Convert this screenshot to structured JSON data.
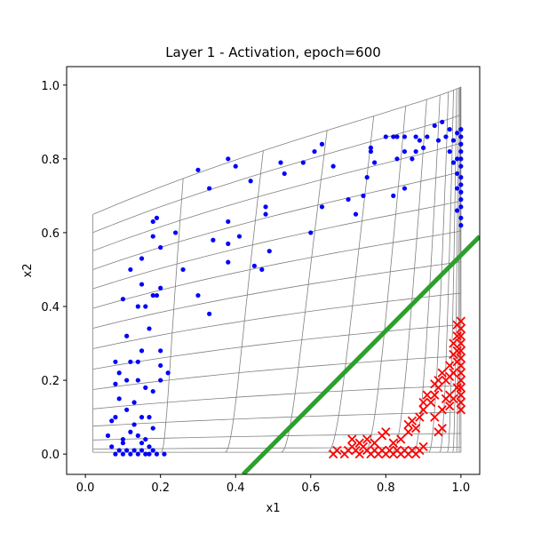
{
  "chart_data": {
    "type": "scatter",
    "title": "Layer 1 - Activation, epoch=600",
    "xlabel": "x1",
    "ylabel": "x2",
    "xlim": [
      -0.05,
      1.05
    ],
    "ylim": [
      -0.055,
      1.05
    ],
    "xticks": [
      0.0,
      0.2,
      0.4,
      0.6,
      0.8,
      1.0
    ],
    "yticks": [
      0.0,
      0.2,
      0.4,
      0.6,
      0.8,
      1.0
    ],
    "xtick_labels": [
      "0.0",
      "0.2",
      "0.4",
      "0.6",
      "0.8",
      "1.0"
    ],
    "ytick_labels": [
      "0.0",
      "0.2",
      "0.4",
      "0.6",
      "0.8",
      "1.0"
    ],
    "grid": false,
    "colors": {
      "class0": "#0000ff",
      "class1": "#ff0000",
      "boundary": "#2ca02c",
      "mesh": "#808080"
    },
    "decision_boundary": {
      "x": [
        0.42,
        1.05
      ],
      "y": [
        -0.055,
        0.59
      ]
    },
    "series": [
      {
        "marker": "dot",
        "points": [
          [
            0.06,
            0.05
          ],
          [
            0.07,
            0.09
          ],
          [
            0.08,
            0.1
          ],
          [
            0.07,
            0.02
          ],
          [
            0.08,
            0.0
          ],
          [
            0.09,
            0.01
          ],
          [
            0.1,
            0.0
          ],
          [
            0.1,
            0.03
          ],
          [
            0.11,
            0.01
          ],
          [
            0.12,
            0.0
          ],
          [
            0.13,
            0.01
          ],
          [
            0.14,
            0.0
          ],
          [
            0.15,
            0.01
          ],
          [
            0.16,
            0.0
          ],
          [
            0.17,
            0.0
          ],
          [
            0.18,
            0.01
          ],
          [
            0.19,
            0.0
          ],
          [
            0.21,
            0.0
          ],
          [
            0.1,
            0.04
          ],
          [
            0.12,
            0.06
          ],
          [
            0.14,
            0.05
          ],
          [
            0.15,
            0.03
          ],
          [
            0.16,
            0.04
          ],
          [
            0.17,
            0.02
          ],
          [
            0.13,
            0.08
          ],
          [
            0.15,
            0.1
          ],
          [
            0.17,
            0.1
          ],
          [
            0.18,
            0.07
          ],
          [
            0.11,
            0.12
          ],
          [
            0.09,
            0.15
          ],
          [
            0.13,
            0.14
          ],
          [
            0.08,
            0.19
          ],
          [
            0.09,
            0.22
          ],
          [
            0.08,
            0.25
          ],
          [
            0.12,
            0.25
          ],
          [
            0.11,
            0.2
          ],
          [
            0.14,
            0.2
          ],
          [
            0.16,
            0.18
          ],
          [
            0.18,
            0.17
          ],
          [
            0.2,
            0.2
          ],
          [
            0.2,
            0.24
          ],
          [
            0.22,
            0.22
          ],
          [
            0.15,
            0.28
          ],
          [
            0.14,
            0.25
          ],
          [
            0.11,
            0.32
          ],
          [
            0.17,
            0.34
          ],
          [
            0.2,
            0.28
          ],
          [
            0.14,
            0.4
          ],
          [
            0.16,
            0.4
          ],
          [
            0.15,
            0.46
          ],
          [
            0.18,
            0.43
          ],
          [
            0.19,
            0.43
          ],
          [
            0.2,
            0.45
          ],
          [
            0.1,
            0.42
          ],
          [
            0.12,
            0.5
          ],
          [
            0.15,
            0.53
          ],
          [
            0.18,
            0.59
          ],
          [
            0.18,
            0.63
          ],
          [
            0.19,
            0.64
          ],
          [
            0.2,
            0.56
          ],
          [
            0.24,
            0.6
          ],
          [
            0.26,
            0.5
          ],
          [
            0.3,
            0.43
          ],
          [
            0.33,
            0.38
          ],
          [
            0.3,
            0.77
          ],
          [
            0.33,
            0.72
          ],
          [
            0.34,
            0.58
          ],
          [
            0.38,
            0.57
          ],
          [
            0.38,
            0.63
          ],
          [
            0.38,
            0.52
          ],
          [
            0.38,
            0.8
          ],
          [
            0.4,
            0.78
          ],
          [
            0.41,
            0.59
          ],
          [
            0.44,
            0.74
          ],
          [
            0.45,
            0.51
          ],
          [
            0.47,
            0.5
          ],
          [
            0.48,
            0.67
          ],
          [
            0.48,
            0.65
          ],
          [
            0.49,
            0.55
          ],
          [
            0.52,
            0.79
          ],
          [
            0.53,
            0.76
          ],
          [
            0.58,
            0.79
          ],
          [
            0.6,
            0.6
          ],
          [
            0.61,
            0.82
          ],
          [
            0.63,
            0.84
          ],
          [
            0.63,
            0.67
          ],
          [
            0.66,
            0.78
          ],
          [
            0.7,
            0.69
          ],
          [
            0.72,
            0.65
          ],
          [
            0.74,
            0.7
          ],
          [
            0.75,
            0.75
          ],
          [
            0.76,
            0.83
          ],
          [
            0.76,
            0.82
          ],
          [
            0.77,
            0.79
          ],
          [
            0.8,
            0.86
          ],
          [
            0.82,
            0.86
          ],
          [
            0.82,
            0.7
          ],
          [
            0.83,
            0.8
          ],
          [
            0.83,
            0.86
          ],
          [
            0.85,
            0.86
          ],
          [
            0.85,
            0.82
          ],
          [
            0.85,
            0.72
          ],
          [
            0.87,
            0.8
          ],
          [
            0.88,
            0.82
          ],
          [
            0.88,
            0.86
          ],
          [
            0.89,
            0.85
          ],
          [
            0.9,
            0.83
          ],
          [
            0.91,
            0.86
          ],
          [
            0.93,
            0.89
          ],
          [
            0.94,
            0.85
          ],
          [
            0.95,
            0.9
          ],
          [
            0.96,
            0.86
          ],
          [
            0.97,
            0.88
          ],
          [
            0.98,
            0.85
          ],
          [
            0.99,
            0.87
          ],
          [
            0.99,
            0.8
          ],
          [
            0.97,
            0.82
          ],
          [
            0.98,
            0.79
          ],
          [
            0.99,
            0.76
          ],
          [
            1.0,
            0.88
          ],
          [
            1.0,
            0.86
          ],
          [
            1.0,
            0.84
          ],
          [
            1.0,
            0.82
          ],
          [
            1.0,
            0.8
          ],
          [
            1.0,
            0.78
          ],
          [
            1.0,
            0.75
          ],
          [
            1.0,
            0.73
          ],
          [
            1.0,
            0.71
          ],
          [
            1.0,
            0.69
          ],
          [
            1.0,
            0.67
          ],
          [
            1.0,
            0.64
          ],
          [
            1.0,
            0.62
          ],
          [
            0.99,
            0.72
          ],
          [
            0.99,
            0.66
          ]
        ]
      },
      {
        "marker": "x",
        "points": [
          [
            0.66,
            0.0
          ],
          [
            0.67,
            0.01
          ],
          [
            0.69,
            0.0
          ],
          [
            0.7,
            0.01
          ],
          [
            0.71,
            0.02
          ],
          [
            0.72,
            0.01
          ],
          [
            0.73,
            0.0
          ],
          [
            0.74,
            0.02
          ],
          [
            0.75,
            0.01
          ],
          [
            0.76,
            0.0
          ],
          [
            0.77,
            0.01
          ],
          [
            0.78,
            0.0
          ],
          [
            0.79,
            0.01
          ],
          [
            0.8,
            0.0
          ],
          [
            0.81,
            0.01
          ],
          [
            0.82,
            0.0
          ],
          [
            0.83,
            0.01
          ],
          [
            0.84,
            0.0
          ],
          [
            0.85,
            0.01
          ],
          [
            0.86,
            0.0
          ],
          [
            0.87,
            0.01
          ],
          [
            0.88,
            0.0
          ],
          [
            0.89,
            0.01
          ],
          [
            0.9,
            0.02
          ],
          [
            0.71,
            0.04
          ],
          [
            0.73,
            0.03
          ],
          [
            0.75,
            0.04
          ],
          [
            0.77,
            0.03
          ],
          [
            0.79,
            0.05
          ],
          [
            0.8,
            0.06
          ],
          [
            0.82,
            0.03
          ],
          [
            0.84,
            0.04
          ],
          [
            0.86,
            0.06
          ],
          [
            0.86,
            0.08
          ],
          [
            0.87,
            0.09
          ],
          [
            0.88,
            0.07
          ],
          [
            0.89,
            0.1
          ],
          [
            0.9,
            0.12
          ],
          [
            0.9,
            0.14
          ],
          [
            0.91,
            0.16
          ],
          [
            0.92,
            0.14
          ],
          [
            0.93,
            0.16
          ],
          [
            0.93,
            0.19
          ],
          [
            0.94,
            0.18
          ],
          [
            0.93,
            0.1
          ],
          [
            0.94,
            0.06
          ],
          [
            0.95,
            0.07
          ],
          [
            0.95,
            0.12
          ],
          [
            0.94,
            0.2
          ],
          [
            0.95,
            0.22
          ],
          [
            0.96,
            0.2
          ],
          [
            0.96,
            0.15
          ],
          [
            0.97,
            0.16
          ],
          [
            0.97,
            0.21
          ],
          [
            0.97,
            0.24
          ],
          [
            0.98,
            0.22
          ],
          [
            0.98,
            0.27
          ],
          [
            0.98,
            0.3
          ],
          [
            0.99,
            0.25
          ],
          [
            0.99,
            0.28
          ],
          [
            0.99,
            0.32
          ],
          [
            0.99,
            0.35
          ],
          [
            1.0,
            0.12
          ],
          [
            1.0,
            0.14
          ],
          [
            1.0,
            0.16
          ],
          [
            1.0,
            0.18
          ],
          [
            1.0,
            0.2
          ],
          [
            1.0,
            0.22
          ],
          [
            1.0,
            0.24
          ],
          [
            1.0,
            0.26
          ],
          [
            1.0,
            0.28
          ],
          [
            1.0,
            0.3
          ],
          [
            1.0,
            0.32
          ],
          [
            1.0,
            0.34
          ],
          [
            1.0,
            0.36
          ],
          [
            0.99,
            0.18
          ],
          [
            0.98,
            0.15
          ],
          [
            0.97,
            0.13
          ]
        ]
      }
    ]
  }
}
